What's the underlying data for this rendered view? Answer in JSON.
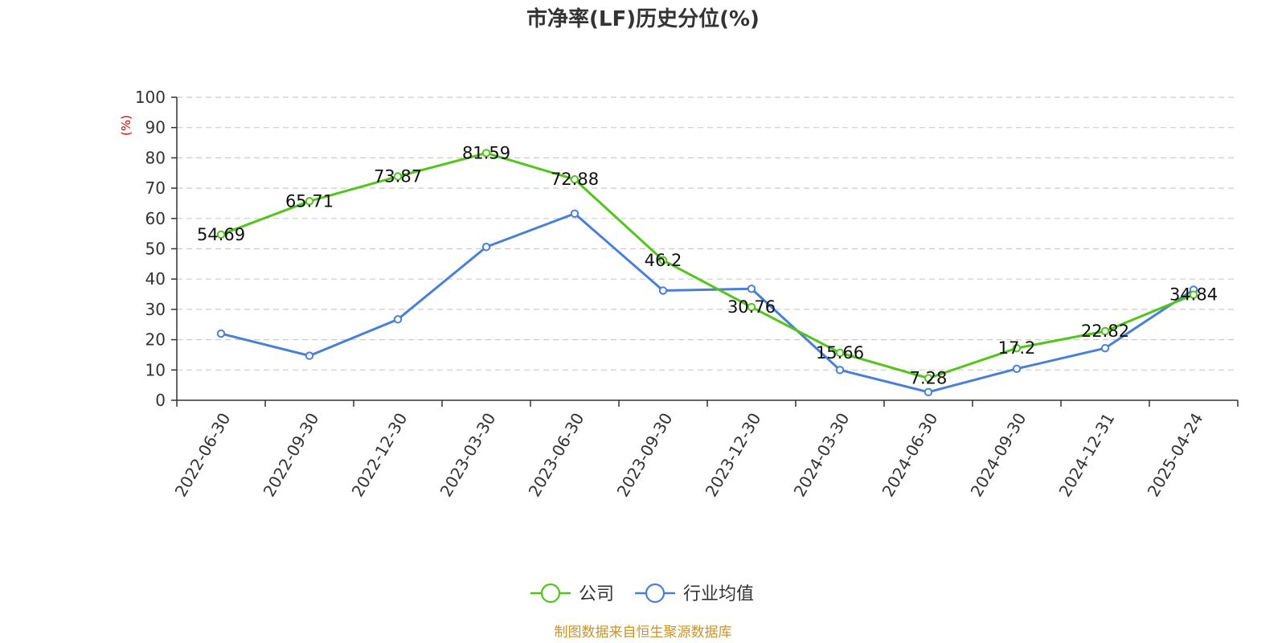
{
  "chart_data": {
    "type": "line",
    "title": "市净率(LF)历史分位(%)",
    "yunit": "(%)",
    "ylim": [
      0,
      100
    ],
    "yticks": [
      0,
      10,
      20,
      30,
      40,
      50,
      60,
      70,
      80,
      90,
      100
    ],
    "grid": true,
    "legend_position": "bottom-center",
    "categories": [
      "2022-06-30",
      "2022-09-30",
      "2022-12-30",
      "2023-03-30",
      "2023-06-30",
      "2023-09-30",
      "2023-12-30",
      "2024-03-30",
      "2024-06-30",
      "2024-09-30",
      "2024-12-31",
      "2025-04-24"
    ],
    "series": [
      {
        "name": "公司",
        "color": "#52c41a",
        "values": [
          54.69,
          65.71,
          73.87,
          81.59,
          72.88,
          46.2,
          30.76,
          15.66,
          7.28,
          17.2,
          22.82,
          34.84
        ],
        "labels": [
          "54.69",
          "65.71",
          "73.87",
          "81.59",
          "72.88",
          "46.2",
          "30.76",
          "15.66",
          "7.28",
          "17.2",
          "22.82",
          "34.84"
        ]
      },
      {
        "name": "行业均值",
        "color": "#4a7fd8",
        "values": [
          22.0,
          14.7,
          26.7,
          50.6,
          61.6,
          36.2,
          36.8,
          10.0,
          2.7,
          10.4,
          17.2,
          36.5
        ]
      }
    ],
    "source": "制图数据来自恒生聚源数据库"
  }
}
